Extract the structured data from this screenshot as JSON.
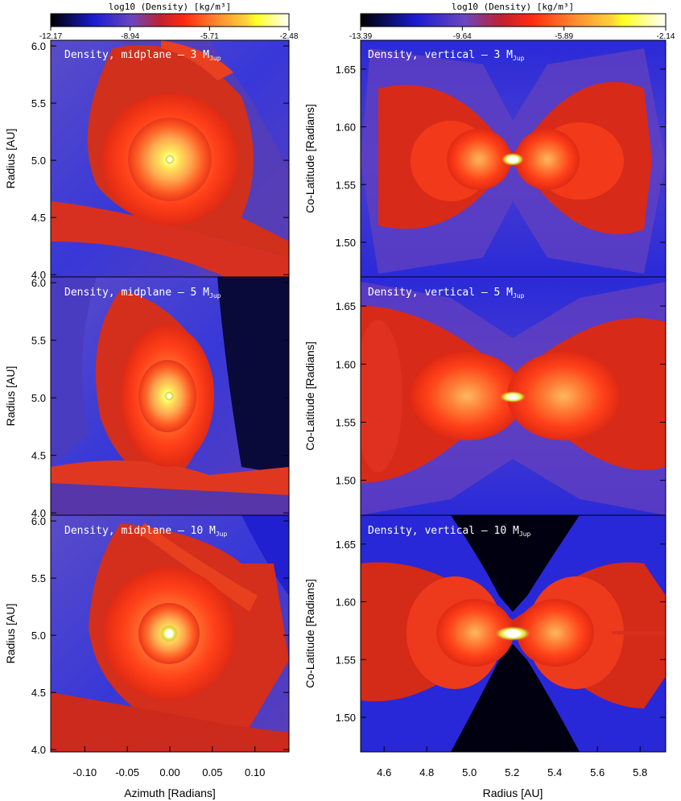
{
  "chart_data": [
    {
      "type": "heatmap",
      "panel": "a",
      "label": "Density, midplane – 3 M",
      "label_sub": "Jup",
      "xlim": [
        -0.14,
        0.14
      ],
      "ylim": [
        3.98,
        6.05
      ],
      "xticks": [],
      "yticks": [
        "6.0",
        "5.5",
        "5.0",
        "4.5",
        "4.0"
      ],
      "ylabel": "Radius [AU]",
      "planet": [
        0.0,
        5.0
      ]
    },
    {
      "type": "heatmap",
      "panel": "b",
      "label": "Density, vertical – 3 M",
      "label_sub": "Jup",
      "xlim": [
        4.49,
        5.92
      ],
      "ylim": [
        1.47,
        1.675
      ],
      "xticks": [],
      "yticks": [
        "1.65",
        "1.60",
        "1.55",
        "1.50"
      ],
      "ylabel": "Co-Latitude [Radians]",
      "planet": [
        5.2,
        1.571
      ]
    },
    {
      "type": "heatmap",
      "panel": "c",
      "label": "Density, midplane – 5 M",
      "label_sub": "Jup",
      "xlim": [
        -0.14,
        0.14
      ],
      "ylim": [
        3.98,
        6.05
      ],
      "xticks": [],
      "yticks": [
        "6.0",
        "5.5",
        "5.0",
        "4.5",
        "4.0"
      ],
      "ylabel": "Radius [AU]",
      "planet": [
        0.0,
        5.0
      ]
    },
    {
      "type": "heatmap",
      "panel": "d",
      "label": "Density, vertical – 5 M",
      "label_sub": "Jup",
      "xlim": [
        4.49,
        5.92
      ],
      "ylim": [
        1.47,
        1.675
      ],
      "xticks": [],
      "yticks": [
        "1.65",
        "1.60",
        "1.55",
        "1.50"
      ],
      "ylabel": "Co-Latitude [Radians]",
      "planet": [
        5.2,
        1.571
      ]
    },
    {
      "type": "heatmap",
      "panel": "e",
      "label": "Density, midplane – 10 M",
      "label_sub": "Jup",
      "xlim": [
        -0.14,
        0.14
      ],
      "ylim": [
        3.98,
        6.05
      ],
      "xticks": [
        "-0.10",
        "-0.05",
        "0.00",
        "0.05",
        "0.10"
      ],
      "yticks": [
        "6.0",
        "5.5",
        "5.0",
        "4.5",
        "4.0"
      ],
      "xlabel": "Azimuth [Radians]",
      "ylabel": "Radius [AU]",
      "planet": [
        0.0,
        5.0
      ]
    },
    {
      "type": "heatmap",
      "panel": "f",
      "label": "Density, vertical – 10 M",
      "label_sub": "Jup",
      "xlim": [
        4.49,
        5.92
      ],
      "ylim": [
        1.47,
        1.675
      ],
      "xticks": [
        "4.6",
        "4.8",
        "5.0",
        "5.2",
        "5.4",
        "5.6",
        "5.8"
      ],
      "yticks": [
        "1.65",
        "1.60",
        "1.55",
        "1.50"
      ],
      "xlabel": "Radius [AU]",
      "ylabel": "Co-Latitude [Radians]",
      "planet": [
        5.2,
        1.571
      ]
    }
  ],
  "colorbars": [
    {
      "title": "log10 (Density) [kg/m³]",
      "range": [
        -12.17,
        -2.48
      ],
      "ticks": [
        "-12.17",
        "-8.94",
        "-5.71",
        "-2.48"
      ]
    },
    {
      "title": "log10 (Density) [kg/m³]",
      "range": [
        -13.39,
        -2.14
      ],
      "ticks": [
        "-13.39",
        "-9.64",
        "-5.89",
        "-2.14"
      ]
    }
  ],
  "colors": {
    "background": "#3b3bd8",
    "disk": "#e8371a",
    "core": "#ffe070",
    "dark": "#000010"
  }
}
